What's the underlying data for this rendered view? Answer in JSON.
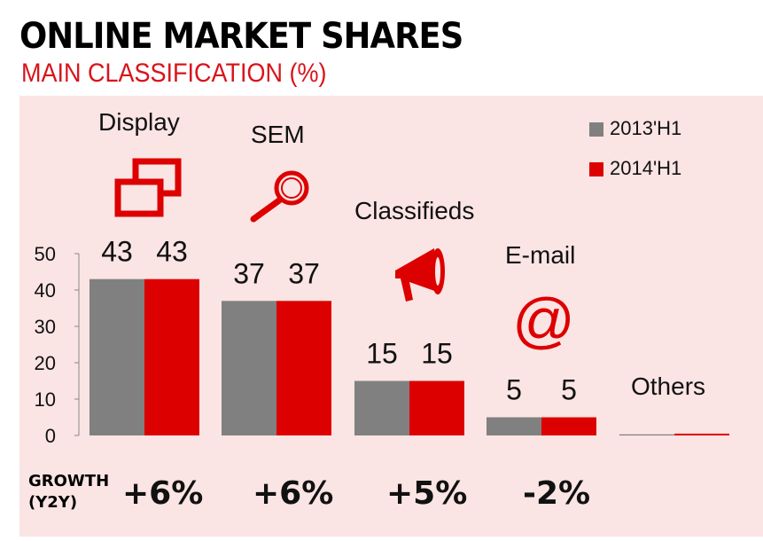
{
  "header": {
    "title": "ONLINE MARKET SHARES",
    "subtitle": "MAIN CLASSIFICATION (%)"
  },
  "colors": {
    "2013'H1": "#808080",
    "2014'H1": "#dd0000",
    "background": "#fbe4e4",
    "accent": "#d9141b"
  },
  "chart_data": {
    "type": "bar",
    "title": "ONLINE MARKET SHARES",
    "subtitle": "MAIN CLASSIFICATION (%)",
    "categories": [
      "Display",
      "SEM",
      "Classifieds",
      "E-mail",
      "Others"
    ],
    "category_icons": [
      "windows-icon",
      "magnifier-icon",
      "megaphone-icon",
      "at-sign-icon",
      ""
    ],
    "series": [
      {
        "name": "2013'H1",
        "values": [
          43,
          37,
          15,
          5,
          0.3
        ],
        "labels": [
          "43",
          "37",
          "15",
          "5",
          ""
        ]
      },
      {
        "name": "2014'H1",
        "values": [
          43,
          37,
          15,
          5,
          0.5
        ],
        "labels": [
          "43",
          "37",
          "15",
          "5",
          ""
        ]
      }
    ],
    "yticks": [
      0,
      10,
      20,
      30,
      40,
      50
    ],
    "ylim": [
      0,
      50
    ],
    "grid": false,
    "legend": "top-right",
    "growth_label": "GROWTH",
    "growth_sublabel": "(Y2Y)",
    "growth": [
      "+6%",
      "+6%",
      "+5%",
      "-2%"
    ]
  }
}
